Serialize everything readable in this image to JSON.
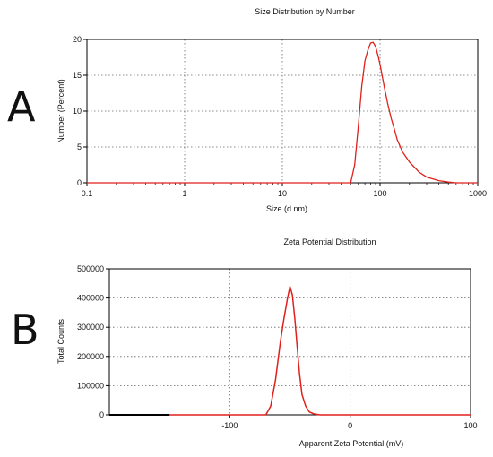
{
  "figure": {
    "panel_labels": [
      "A",
      "B"
    ]
  },
  "chart_data": [
    {
      "type": "line",
      "title": "Size Distribution by Number",
      "xlabel": "Size (d.nm)",
      "ylabel": "Number (Percent)",
      "xscale": "log",
      "xlim": [
        0.1,
        1000
      ],
      "ylim": [
        0,
        20
      ],
      "x_tick_labels": [
        "0.1",
        "1",
        "10",
        "100",
        "1000"
      ],
      "y_tick_labels": [
        "0",
        "5",
        "10",
        "15",
        "20"
      ],
      "grid": true,
      "line_color": "#e0201b",
      "series": [
        {
          "x": [
            0.1,
            50,
            55,
            60,
            65,
            70,
            75,
            80,
            85,
            90,
            95,
            100,
            110,
            120,
            130,
            140,
            150,
            170,
            200,
            250,
            300,
            400,
            500,
            600,
            800,
            1000
          ],
          "y": [
            0,
            0,
            2.5,
            8,
            13.5,
            17,
            18.5,
            19.5,
            19.6,
            19,
            17.8,
            16.5,
            13.5,
            11,
            9,
            7.5,
            6,
            4.3,
            2.9,
            1.5,
            0.8,
            0.3,
            0.1,
            0,
            0,
            0
          ]
        }
      ]
    },
    {
      "type": "line",
      "title": "Zeta Potential Distribution",
      "xlabel": "Apparent Zeta Potential (mV)",
      "ylabel": "Total Counts",
      "xlim": [
        -200,
        100
      ],
      "ylim": [
        0,
        500000
      ],
      "x_tick_labels": [
        "-100",
        "0",
        "100"
      ],
      "y_tick_labels": [
        "0",
        "100000",
        "200000",
        "300000",
        "400000",
        "500000"
      ],
      "grid": true,
      "line_color": "#e0201b",
      "series": [
        {
          "x": [
            -150,
            -70,
            -66,
            -62,
            -58,
            -55,
            -52,
            -50,
            -48,
            -46,
            -44,
            -42,
            -40,
            -37,
            -34,
            -30,
            -25,
            100
          ],
          "y": [
            0,
            0,
            30000,
            120000,
            250000,
            330000,
            400000,
            440000,
            410000,
            330000,
            230000,
            140000,
            70000,
            30000,
            10000,
            3000,
            0,
            0
          ]
        }
      ]
    }
  ]
}
